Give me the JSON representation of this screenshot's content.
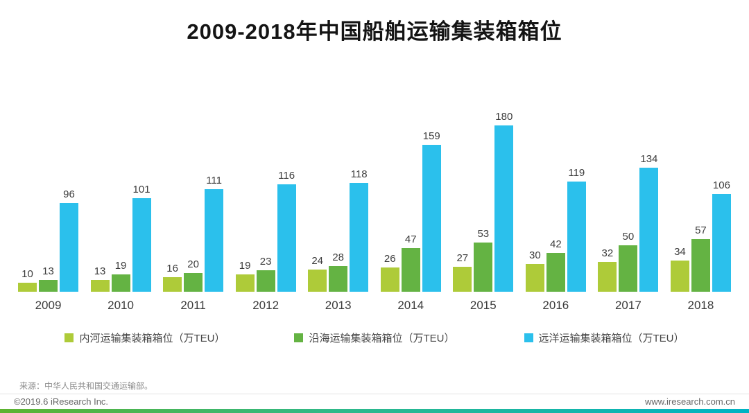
{
  "title": "2009-2018年中国船舶运输集装箱箱位",
  "chart_data": {
    "type": "bar",
    "title": "2009-2018年中国船舶运输集装箱箱位",
    "categories": [
      "2009",
      "2010",
      "2011",
      "2012",
      "2013",
      "2014",
      "2015",
      "2016",
      "2017",
      "2018"
    ],
    "series": [
      {
        "name": "内河运输集装箱箱位（万TEU）",
        "color": "#aecb39",
        "values": [
          10,
          13,
          16,
          19,
          24,
          26,
          27,
          30,
          32,
          34
        ]
      },
      {
        "name": "沿海运输集装箱箱位（万TEU）",
        "color": "#64b343",
        "values": [
          13,
          19,
          20,
          23,
          28,
          47,
          53,
          42,
          50,
          57
        ]
      },
      {
        "name": "远洋运输集装箱箱位（万TEU）",
        "color": "#2bc0ec",
        "values": [
          96,
          101,
          111,
          116,
          118,
          159,
          180,
          119,
          134,
          106
        ]
      }
    ],
    "xlabel": "",
    "ylabel": "",
    "ylim": [
      0,
      180
    ],
    "grid": false,
    "data_labels": true,
    "legend_position": "bottom"
  },
  "footer": {
    "source": "来源：中华人民共和国交通运输部。",
    "copyright": "©2019.6 iResearch Inc.",
    "website": "www.iresearch.com.cn"
  }
}
